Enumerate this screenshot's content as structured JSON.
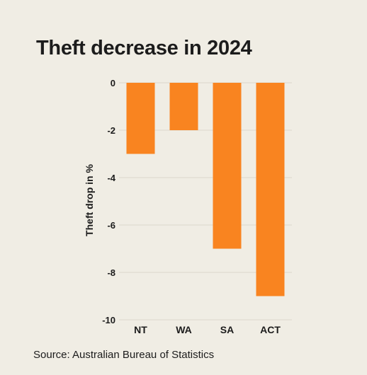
{
  "chart_data": {
    "type": "bar",
    "title": "Theft decrease in 2024",
    "ylabel": "Theft drop in %",
    "xlabel": "",
    "categories": [
      "NT",
      "WA",
      "SA",
      "ACT"
    ],
    "values": [
      -3,
      -2,
      -7,
      -9
    ],
    "ylim": [
      -10,
      0
    ],
    "yticks": [
      0,
      -2,
      -4,
      -6,
      -8,
      -10
    ],
    "grid": true,
    "legend": "none",
    "bar_color": "#f98420"
  },
  "source": "Source: Australian Bureau of Statistics",
  "colors": {
    "background": "#f0ede4",
    "grid": "#dcd8cd",
    "bar": "#f98420"
  }
}
